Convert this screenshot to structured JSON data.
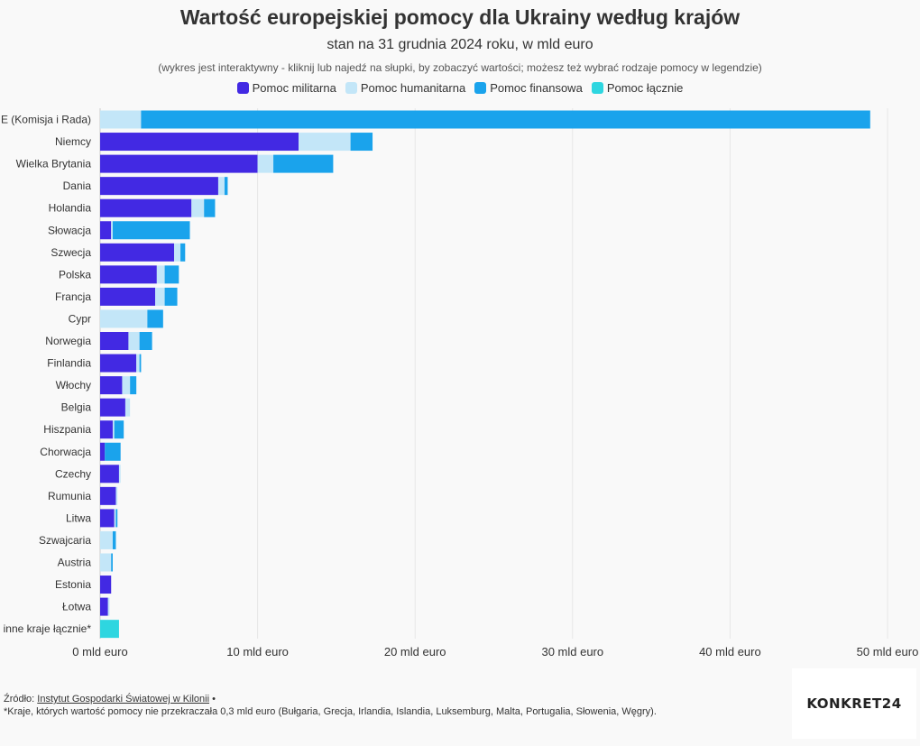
{
  "chart_data": {
    "type": "bar",
    "orientation": "horizontal",
    "stacked": true,
    "title": "Wartość europejskiej pomocy dla Ukrainy według krajów",
    "subtitle": "stan na 31 grudnia 2024 roku, w mld euro",
    "note": "(wykres jest interaktywny - kliknij lub najedź na słupki, by zobaczyć wartości; możesz też wybrać rodzaje pomocy w legendzie)",
    "xlim": [
      0,
      50
    ],
    "x_ticks": [
      0,
      10,
      20,
      30,
      40,
      50
    ],
    "x_tick_labels": [
      "0 mld euro",
      "10 mld euro",
      "20 mld euro",
      "30 mld euro",
      "40 mld euro",
      "50 mld euro"
    ],
    "grid": true,
    "legend_position": "top-center",
    "categories": [
      "UE (Komisja i Rada)",
      "Niemcy",
      "Wielka Brytania",
      "Dania",
      "Holandia",
      "Słowacja",
      "Szwecja",
      "Polska",
      "Francja",
      "Cypr",
      "Norwegia",
      "Finlandia",
      "Włochy",
      "Belgia",
      "Hiszpania",
      "Chorwacja",
      "Czechy",
      "Rumunia",
      "Litwa",
      "Szwajcaria",
      "Austria",
      "Estonia",
      "Łotwa",
      "inne kraje łącznie*"
    ],
    "series": [
      {
        "name": "Pomoc militarna",
        "color": "#4229e3",
        "values": [
          0,
          12.6,
          10.0,
          7.5,
          5.8,
          0.7,
          4.7,
          3.6,
          3.5,
          0,
          1.8,
          2.3,
          1.4,
          1.6,
          0.8,
          0.3,
          1.2,
          1.0,
          0.9,
          0,
          0,
          0.7,
          0.5,
          0
        ]
      },
      {
        "name": "Pomoc humanitarna",
        "color": "#c3e6f8",
        "values": [
          2.6,
          3.3,
          1.0,
          0.4,
          0.8,
          0.1,
          0.4,
          0.5,
          0.6,
          3.0,
          0.7,
          0.2,
          0.5,
          0.3,
          0.1,
          0,
          0.1,
          0.1,
          0.1,
          0.8,
          0.7,
          0,
          0.1,
          0
        ]
      },
      {
        "name": "Pomoc finansowa",
        "color": "#1aa3ec",
        "values": [
          46.3,
          1.4,
          3.8,
          0.2,
          0.7,
          4.9,
          0.3,
          0.9,
          0.8,
          1.0,
          0.8,
          0.1,
          0.4,
          0,
          0.6,
          1.0,
          0,
          0,
          0.1,
          0.2,
          0.1,
          0,
          0,
          0
        ]
      },
      {
        "name": "Pomoc łącznie",
        "color": "#2ed6e0",
        "values": [
          0,
          0,
          0,
          0,
          0,
          0,
          0,
          0,
          0,
          0,
          0,
          0,
          0,
          0,
          0,
          0,
          0,
          0,
          0,
          0,
          0,
          0,
          0,
          1.2
        ]
      }
    ]
  },
  "footer": {
    "source_prefix": "Źródło: ",
    "source_link": "Instytut Gospodarki Światowej w Kilonii",
    "source_suffix": " •",
    "footnote": "*Kraje, których wartość pomocy nie przekraczała 0,3 mld euro (Bułgaria, Grecja, Irlandia, Islandia, Luksemburg, Malta, Portugalia, Słowenia, Węgry)."
  },
  "logo": {
    "text": "KONKRET24"
  }
}
